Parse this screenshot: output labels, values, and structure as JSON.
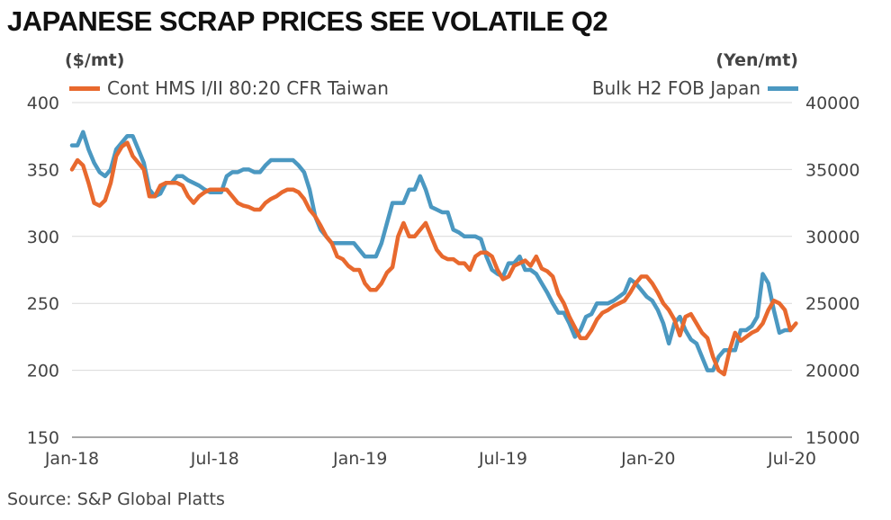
{
  "chart_data": {
    "type": "line",
    "title": "JAPANESE SCRAP PRICES SEE VOLATILE Q2",
    "source": "Source: S&P Global Platts",
    "left_axis_unit": "($/mt)",
    "right_axis_unit": "(Yen/mt)",
    "x_ticks": [
      "Jan-18",
      "Jul-18",
      "Jan-19",
      "Jul-19",
      "Jan-20",
      "Jul-20"
    ],
    "x_range": [
      "2018-01",
      "2020-07"
    ],
    "ylim_left": [
      150,
      400
    ],
    "yticks_left": [
      150,
      200,
      250,
      300,
      350,
      400
    ],
    "ylim_right": [
      15000,
      40000
    ],
    "yticks_right": [
      15000,
      20000,
      25000,
      30000,
      35000,
      40000
    ],
    "grid": "horizontal",
    "series": [
      {
        "name": "Cont HMS I/II 80:20 CFR Taiwan",
        "axis": "left",
        "color": "#e8692e",
        "legend_position": "top-left",
        "points": [
          [
            "2018-01-01",
            350
          ],
          [
            "2018-01-08",
            357
          ],
          [
            "2018-01-15",
            353
          ],
          [
            "2018-01-22",
            340
          ],
          [
            "2018-01-29",
            325
          ],
          [
            "2018-02-05",
            323
          ],
          [
            "2018-02-12",
            327
          ],
          [
            "2018-02-19",
            340
          ],
          [
            "2018-02-26",
            360
          ],
          [
            "2018-03-05",
            367
          ],
          [
            "2018-03-12",
            370
          ],
          [
            "2018-03-19",
            360
          ],
          [
            "2018-03-26",
            355
          ],
          [
            "2018-04-02",
            350
          ],
          [
            "2018-04-09",
            330
          ],
          [
            "2018-04-16",
            330
          ],
          [
            "2018-04-23",
            338
          ],
          [
            "2018-04-30",
            340
          ],
          [
            "2018-05-07",
            340
          ],
          [
            "2018-05-14",
            340
          ],
          [
            "2018-05-21",
            338
          ],
          [
            "2018-05-28",
            330
          ],
          [
            "2018-06-04",
            325
          ],
          [
            "2018-06-11",
            330
          ],
          [
            "2018-06-18",
            333
          ],
          [
            "2018-06-25",
            335
          ],
          [
            "2018-07-02",
            335
          ],
          [
            "2018-07-09",
            335
          ],
          [
            "2018-07-16",
            335
          ],
          [
            "2018-07-23",
            330
          ],
          [
            "2018-07-30",
            325
          ],
          [
            "2018-08-06",
            323
          ],
          [
            "2018-08-13",
            322
          ],
          [
            "2018-08-20",
            320
          ],
          [
            "2018-08-27",
            320
          ],
          [
            "2018-09-03",
            325
          ],
          [
            "2018-09-10",
            328
          ],
          [
            "2018-09-17",
            330
          ],
          [
            "2018-09-24",
            333
          ],
          [
            "2018-10-01",
            335
          ],
          [
            "2018-10-08",
            335
          ],
          [
            "2018-10-15",
            333
          ],
          [
            "2018-10-22",
            328
          ],
          [
            "2018-10-29",
            320
          ],
          [
            "2018-11-05",
            315
          ],
          [
            "2018-11-12",
            308
          ],
          [
            "2018-11-19",
            300
          ],
          [
            "2018-11-26",
            295
          ],
          [
            "2018-12-03",
            285
          ],
          [
            "2018-12-10",
            283
          ],
          [
            "2018-12-17",
            278
          ],
          [
            "2018-12-24",
            275
          ],
          [
            "2018-12-31",
            275
          ],
          [
            "2019-01-07",
            265
          ],
          [
            "2019-01-14",
            260
          ],
          [
            "2019-01-21",
            260
          ],
          [
            "2019-01-28",
            265
          ],
          [
            "2019-02-04",
            273
          ],
          [
            "2019-02-11",
            277
          ],
          [
            "2019-02-18",
            300
          ],
          [
            "2019-02-25",
            310
          ],
          [
            "2019-03-04",
            300
          ],
          [
            "2019-03-11",
            300
          ],
          [
            "2019-03-18",
            305
          ],
          [
            "2019-03-25",
            310
          ],
          [
            "2019-04-01",
            300
          ],
          [
            "2019-04-08",
            290
          ],
          [
            "2019-04-15",
            285
          ],
          [
            "2019-04-22",
            283
          ],
          [
            "2019-04-29",
            283
          ],
          [
            "2019-05-06",
            280
          ],
          [
            "2019-05-13",
            280
          ],
          [
            "2019-05-20",
            275
          ],
          [
            "2019-05-27",
            285
          ],
          [
            "2019-06-03",
            288
          ],
          [
            "2019-06-10",
            288
          ],
          [
            "2019-06-17",
            285
          ],
          [
            "2019-06-24",
            275
          ],
          [
            "2019-07-01",
            268
          ],
          [
            "2019-07-08",
            270
          ],
          [
            "2019-07-15",
            278
          ],
          [
            "2019-07-22",
            280
          ],
          [
            "2019-07-29",
            282
          ],
          [
            "2019-08-05",
            278
          ],
          [
            "2019-08-12",
            285
          ],
          [
            "2019-08-19",
            276
          ],
          [
            "2019-08-26",
            274
          ],
          [
            "2019-09-02",
            270
          ],
          [
            "2019-09-09",
            257
          ],
          [
            "2019-09-16",
            250
          ],
          [
            "2019-09-23",
            240
          ],
          [
            "2019-09-30",
            232
          ],
          [
            "2019-10-07",
            224
          ],
          [
            "2019-10-14",
            224
          ],
          [
            "2019-10-21",
            230
          ],
          [
            "2019-10-28",
            238
          ],
          [
            "2019-11-04",
            243
          ],
          [
            "2019-11-11",
            245
          ],
          [
            "2019-11-18",
            248
          ],
          [
            "2019-11-25",
            250
          ],
          [
            "2019-12-02",
            252
          ],
          [
            "2019-12-09",
            258
          ],
          [
            "2019-12-16",
            265
          ],
          [
            "2019-12-23",
            270
          ],
          [
            "2019-12-30",
            270
          ],
          [
            "2020-01-06",
            265
          ],
          [
            "2020-01-13",
            258
          ],
          [
            "2020-01-20",
            250
          ],
          [
            "2020-01-27",
            245
          ],
          [
            "2020-02-03",
            238
          ],
          [
            "2020-02-10",
            226
          ],
          [
            "2020-02-17",
            240
          ],
          [
            "2020-02-24",
            242
          ],
          [
            "2020-03-02",
            235
          ],
          [
            "2020-03-09",
            228
          ],
          [
            "2020-03-16",
            224
          ],
          [
            "2020-03-23",
            210
          ],
          [
            "2020-03-30",
            200
          ],
          [
            "2020-04-06",
            197
          ],
          [
            "2020-04-13",
            215
          ],
          [
            "2020-04-20",
            228
          ],
          [
            "2020-04-27",
            222
          ],
          [
            "2020-05-04",
            225
          ],
          [
            "2020-05-11",
            228
          ],
          [
            "2020-05-18",
            230
          ],
          [
            "2020-05-25",
            235
          ],
          [
            "2020-06-01",
            245
          ],
          [
            "2020-06-08",
            252
          ],
          [
            "2020-06-15",
            250
          ],
          [
            "2020-06-22",
            245
          ],
          [
            "2020-06-29",
            230
          ],
          [
            "2020-07-06",
            235
          ]
        ]
      },
      {
        "name": "Bulk H2 FOB Japan",
        "axis": "right",
        "color": "#4b98c1",
        "legend_position": "top-right",
        "points": [
          [
            "2018-01-01",
            36800
          ],
          [
            "2018-01-08",
            36800
          ],
          [
            "2018-01-15",
            37800
          ],
          [
            "2018-01-22",
            36500
          ],
          [
            "2018-01-29",
            35500
          ],
          [
            "2018-02-05",
            34800
          ],
          [
            "2018-02-12",
            34500
          ],
          [
            "2018-02-19",
            35000
          ],
          [
            "2018-02-26",
            36500
          ],
          [
            "2018-03-05",
            37000
          ],
          [
            "2018-03-12",
            37500
          ],
          [
            "2018-03-19",
            37500
          ],
          [
            "2018-03-26",
            36500
          ],
          [
            "2018-04-02",
            35500
          ],
          [
            "2018-04-09",
            33500
          ],
          [
            "2018-04-16",
            33000
          ],
          [
            "2018-04-23",
            33200
          ],
          [
            "2018-04-30",
            34000
          ],
          [
            "2018-05-07",
            34000
          ],
          [
            "2018-05-14",
            34500
          ],
          [
            "2018-05-21",
            34500
          ],
          [
            "2018-05-28",
            34200
          ],
          [
            "2018-06-04",
            34000
          ],
          [
            "2018-06-11",
            33800
          ],
          [
            "2018-06-18",
            33500
          ],
          [
            "2018-06-25",
            33300
          ],
          [
            "2018-07-02",
            33300
          ],
          [
            "2018-07-09",
            33300
          ],
          [
            "2018-07-16",
            34500
          ],
          [
            "2018-07-23",
            34800
          ],
          [
            "2018-07-30",
            34800
          ],
          [
            "2018-08-06",
            35000
          ],
          [
            "2018-08-13",
            35000
          ],
          [
            "2018-08-20",
            34800
          ],
          [
            "2018-08-27",
            34800
          ],
          [
            "2018-09-03",
            35300
          ],
          [
            "2018-09-10",
            35700
          ],
          [
            "2018-09-17",
            35700
          ],
          [
            "2018-09-24",
            35700
          ],
          [
            "2018-10-01",
            35700
          ],
          [
            "2018-10-08",
            35700
          ],
          [
            "2018-10-15",
            35300
          ],
          [
            "2018-10-22",
            34800
          ],
          [
            "2018-10-29",
            33500
          ],
          [
            "2018-11-05",
            31500
          ],
          [
            "2018-11-12",
            30500
          ],
          [
            "2018-11-19",
            30000
          ],
          [
            "2018-11-26",
            29500
          ],
          [
            "2018-12-03",
            29500
          ],
          [
            "2018-12-10",
            29500
          ],
          [
            "2018-12-17",
            29500
          ],
          [
            "2018-12-24",
            29500
          ],
          [
            "2018-12-31",
            29000
          ],
          [
            "2019-01-07",
            28500
          ],
          [
            "2019-01-14",
            28500
          ],
          [
            "2019-01-21",
            28500
          ],
          [
            "2019-01-28",
            29500
          ],
          [
            "2019-02-04",
            31000
          ],
          [
            "2019-02-11",
            32500
          ],
          [
            "2019-02-18",
            32500
          ],
          [
            "2019-02-25",
            32500
          ],
          [
            "2019-03-04",
            33500
          ],
          [
            "2019-03-11",
            33500
          ],
          [
            "2019-03-18",
            34500
          ],
          [
            "2019-03-25",
            33500
          ],
          [
            "2019-04-01",
            32200
          ],
          [
            "2019-04-08",
            32000
          ],
          [
            "2019-04-15",
            31800
          ],
          [
            "2019-04-22",
            31800
          ],
          [
            "2019-04-29",
            30500
          ],
          [
            "2019-05-06",
            30300
          ],
          [
            "2019-05-13",
            30000
          ],
          [
            "2019-05-20",
            30000
          ],
          [
            "2019-05-27",
            30000
          ],
          [
            "2019-06-03",
            29800
          ],
          [
            "2019-06-10",
            28500
          ],
          [
            "2019-06-17",
            27500
          ],
          [
            "2019-06-24",
            27200
          ],
          [
            "2019-07-01",
            27000
          ],
          [
            "2019-07-08",
            28000
          ],
          [
            "2019-07-15",
            28000
          ],
          [
            "2019-07-22",
            28500
          ],
          [
            "2019-07-29",
            27500
          ],
          [
            "2019-08-05",
            27500
          ],
          [
            "2019-08-12",
            27200
          ],
          [
            "2019-08-19",
            26500
          ],
          [
            "2019-08-26",
            25800
          ],
          [
            "2019-09-02",
            25000
          ],
          [
            "2019-09-09",
            24300
          ],
          [
            "2019-09-16",
            24300
          ],
          [
            "2019-09-23",
            23500
          ],
          [
            "2019-09-30",
            22500
          ],
          [
            "2019-10-07",
            23000
          ],
          [
            "2019-10-14",
            24000
          ],
          [
            "2019-10-21",
            24200
          ],
          [
            "2019-10-28",
            25000
          ],
          [
            "2019-11-04",
            25000
          ],
          [
            "2019-11-11",
            25000
          ],
          [
            "2019-11-18",
            25200
          ],
          [
            "2019-11-25",
            25500
          ],
          [
            "2019-12-02",
            25800
          ],
          [
            "2019-12-09",
            26800
          ],
          [
            "2019-12-16",
            26500
          ],
          [
            "2019-12-23",
            26000
          ],
          [
            "2019-12-30",
            25500
          ],
          [
            "2020-01-06",
            25200
          ],
          [
            "2020-01-13",
            24500
          ],
          [
            "2020-01-20",
            23500
          ],
          [
            "2020-01-27",
            22000
          ],
          [
            "2020-02-03",
            23500
          ],
          [
            "2020-02-10",
            24000
          ],
          [
            "2020-02-17",
            23000
          ],
          [
            "2020-02-24",
            22300
          ],
          [
            "2020-03-02",
            22000
          ],
          [
            "2020-03-09",
            21000
          ],
          [
            "2020-03-16",
            20000
          ],
          [
            "2020-03-23",
            20000
          ],
          [
            "2020-03-30",
            21000
          ],
          [
            "2020-04-06",
            21500
          ],
          [
            "2020-04-13",
            21500
          ],
          [
            "2020-04-20",
            21500
          ],
          [
            "2020-04-27",
            23000
          ],
          [
            "2020-05-04",
            23000
          ],
          [
            "2020-05-11",
            23300
          ],
          [
            "2020-05-18",
            24000
          ],
          [
            "2020-05-25",
            27200
          ],
          [
            "2020-06-01",
            26500
          ],
          [
            "2020-06-08",
            24500
          ],
          [
            "2020-06-15",
            22800
          ],
          [
            "2020-06-22",
            23000
          ],
          [
            "2020-06-29",
            23000
          ]
        ]
      }
    ]
  }
}
